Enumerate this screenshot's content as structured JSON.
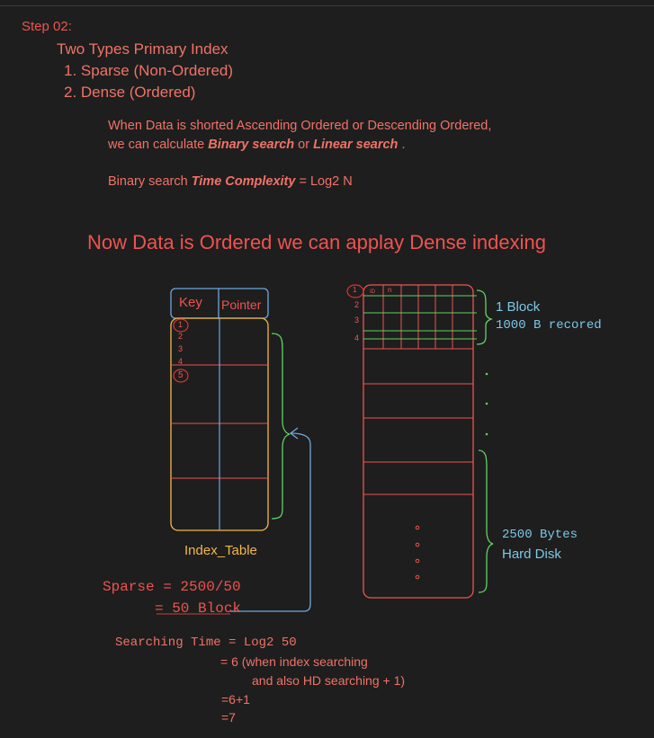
{
  "header": {
    "step": "Step 02:",
    "title": "Two Types Primary Index",
    "type1": "1. Sparse (Non-Ordered)",
    "type2": "2. Dense (Ordered)"
  },
  "note": {
    "line1": "When Data is shorted Ascending Ordered or Descending Ordered,",
    "line2_prefix": "we can calculate ",
    "binary": "Binary search",
    "or": " or ",
    "linear": "Linear search",
    "period": " .",
    "complexity_prefix": "Binary search ",
    "complexity_label": "Time Complexity",
    "complexity_value": " = Log2 N"
  },
  "heading": "Now Data is Ordered we can applay Dense indexing",
  "index_table": {
    "col_key": "Key",
    "col_pointer": "Pointer",
    "keys": [
      "1",
      "2",
      "3",
      "4",
      "5"
    ],
    "caption": "Index_Table"
  },
  "disk": {
    "row_numbers": [
      "1",
      "2",
      "3",
      "4"
    ],
    "col_id": "ID",
    "col_n": "n",
    "block_label": "1 Block",
    "block_record": "1000 B recored",
    "size_label": "2500 Bytes",
    "hd_label": "Hard Disk"
  },
  "calc": {
    "sparse": "Sparse = 2500/50",
    "blocks": "= 50 Block",
    "search_label": "Searching Time",
    "search_value": " = Log2 50",
    "line2": "= 6 (when index searching",
    "line3": "and also HD searching + 1)",
    "line4": "=6+1",
    "line5": "=7"
  },
  "colors": {
    "background": "#1e1e1e",
    "red": "#ef5350",
    "green": "#5fd35f",
    "cyan": "#7cc8e8",
    "yellow": "#f3b84a",
    "blue": "#6fa8dc"
  }
}
